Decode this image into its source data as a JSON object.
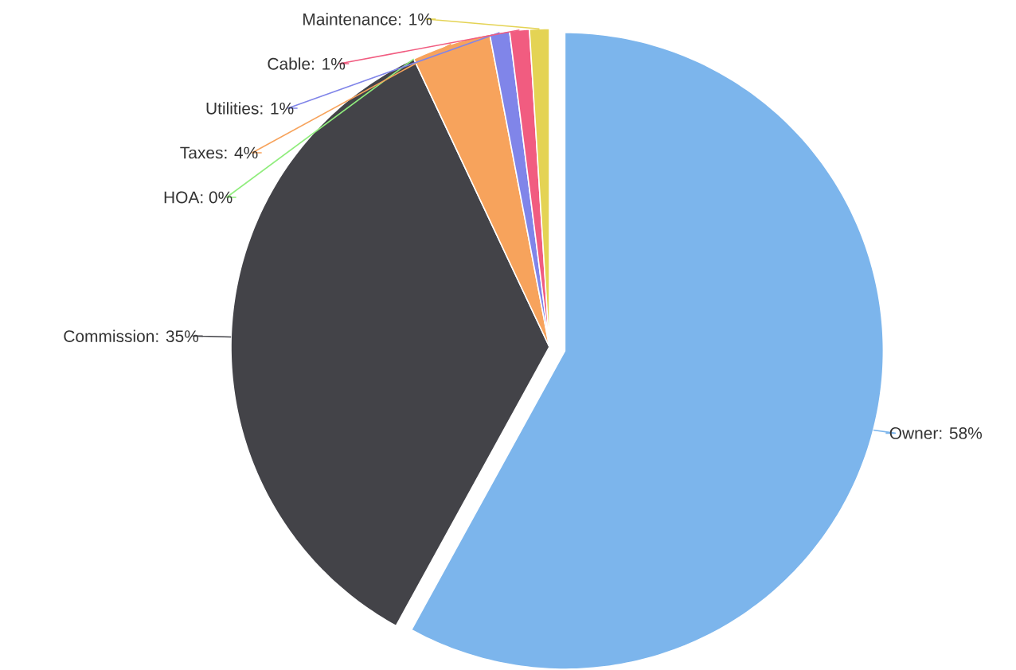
{
  "chart_data": {
    "type": "pie",
    "categories": [
      "Owner",
      "Commission",
      "HOA",
      "Taxes",
      "Utilities",
      "Cable",
      "Maintenance"
    ],
    "values": [
      58,
      35,
      0,
      4,
      1,
      1,
      1
    ],
    "value_labels": [
      ": 58%",
      ": 35%",
      ": 0%",
      ": 4%",
      ": 1%",
      ": 1%",
      ": 1%"
    ],
    "colors": [
      "#7cb5ec",
      "#434348",
      "#90ed7d",
      "#f7a35c",
      "#8085e9",
      "#f15c80",
      "#e4d354"
    ]
  }
}
